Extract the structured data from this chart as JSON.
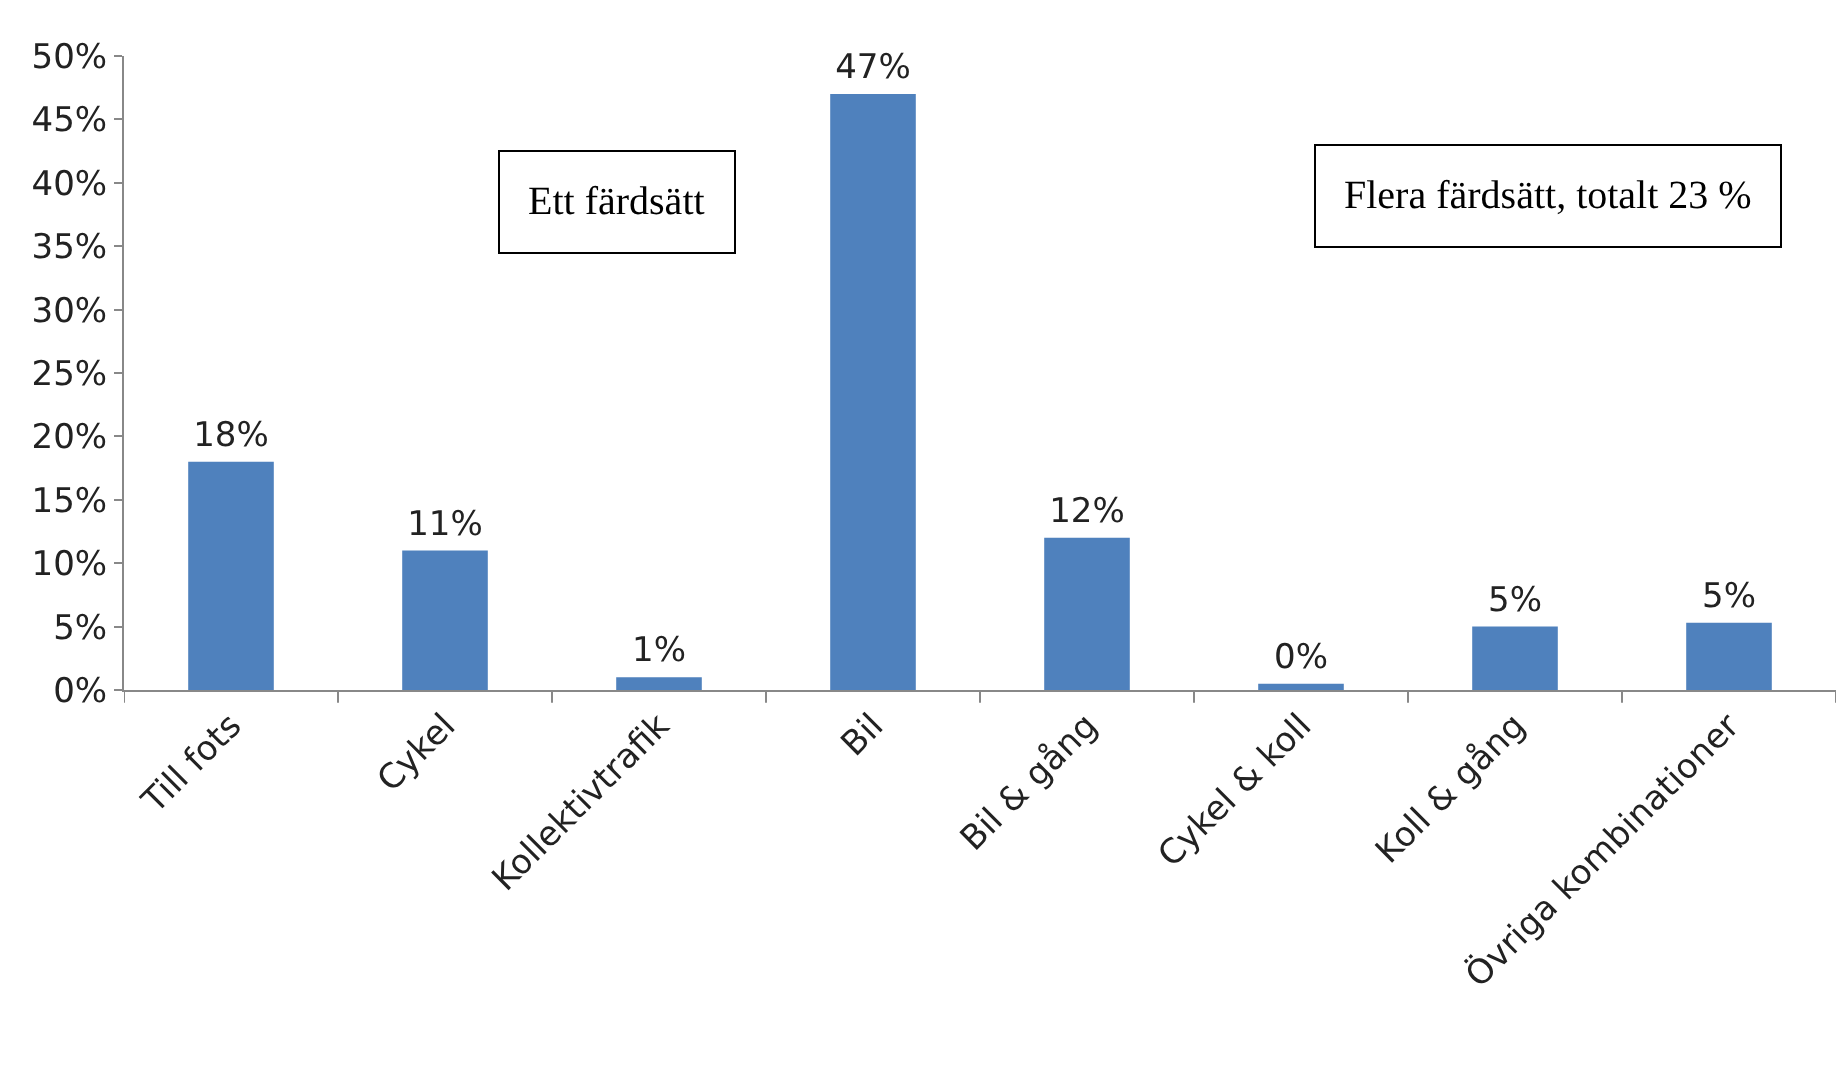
{
  "chart_data": {
    "type": "bar",
    "categories": [
      "Till fots",
      "Cykel",
      "Kollektivtrafik",
      "Bil",
      "Bil & gång",
      "Cykel & koll",
      "Koll & gång",
      "Övriga kombinationer"
    ],
    "values": [
      18,
      11,
      1,
      47,
      12,
      0.5,
      5,
      5.3
    ],
    "value_labels": [
      "18%",
      "11%",
      "1%",
      "47%",
      "12%",
      "0%",
      "5%",
      "5%"
    ],
    "color": "#4f81bd",
    "ylim": [
      0,
      50
    ],
    "yticks": [
      {
        "value": 0,
        "label": "0%"
      },
      {
        "value": 5,
        "label": "5%"
      },
      {
        "value": 10,
        "label": "10%"
      },
      {
        "value": 15,
        "label": "15%"
      },
      {
        "value": 20,
        "label": "20%"
      },
      {
        "value": 25,
        "label": "25%"
      },
      {
        "value": 30,
        "label": "30%"
      },
      {
        "value": 35,
        "label": "35%"
      },
      {
        "value": 40,
        "label": "40%"
      },
      {
        "value": 45,
        "label": "45%"
      },
      {
        "value": 50,
        "label": "50%"
      }
    ],
    "grid": false,
    "annotations": [
      "Ett färdsätt",
      "Flera färdsätt, totalt 23 %"
    ]
  }
}
